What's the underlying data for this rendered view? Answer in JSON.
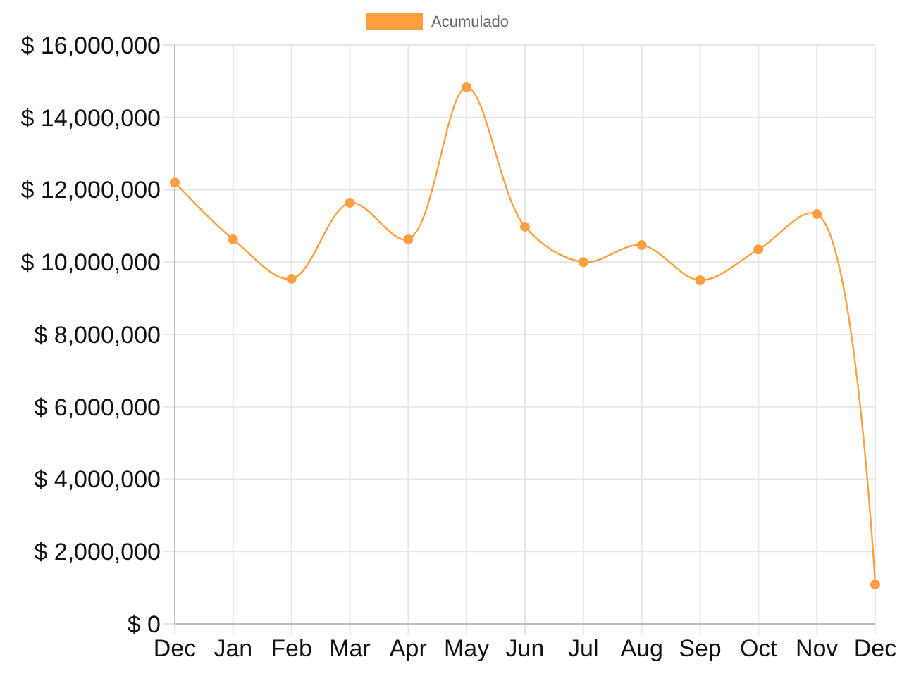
{
  "chart_data": {
    "type": "line",
    "categories": [
      "Dec",
      "Jan",
      "Feb",
      "Mar",
      "Apr",
      "May",
      "Jun",
      "Jul",
      "Aug",
      "Sep",
      "Oct",
      "Nov",
      "Dec"
    ],
    "series": [
      {
        "name": "Acumulado",
        "color": "#ff9f40",
        "values": [
          12200000,
          10630000,
          9540000,
          11640000,
          10630000,
          14830000,
          10980000,
          10000000,
          10470000,
          9500000,
          10350000,
          11330000,
          1090000
        ]
      }
    ],
    "ylim": [
      0,
      16000000
    ],
    "yticks": [
      {
        "value": 0,
        "label": "$ 0"
      },
      {
        "value": 2000000,
        "label": "$ 2,000,000"
      },
      {
        "value": 4000000,
        "label": "$ 4,000,000"
      },
      {
        "value": 6000000,
        "label": "$ 6,000,000"
      },
      {
        "value": 8000000,
        "label": "$ 8,000,000"
      },
      {
        "value": 10000000,
        "label": "$ 10,000,000"
      },
      {
        "value": 12000000,
        "label": "$ 12,000,000"
      },
      {
        "value": 14000000,
        "label": "$ 14,000,000"
      },
      {
        "value": 16000000,
        "label": "$ 16,000,000"
      }
    ],
    "grid": true,
    "legend": "top",
    "marker": "circle",
    "line_style": "solid"
  }
}
